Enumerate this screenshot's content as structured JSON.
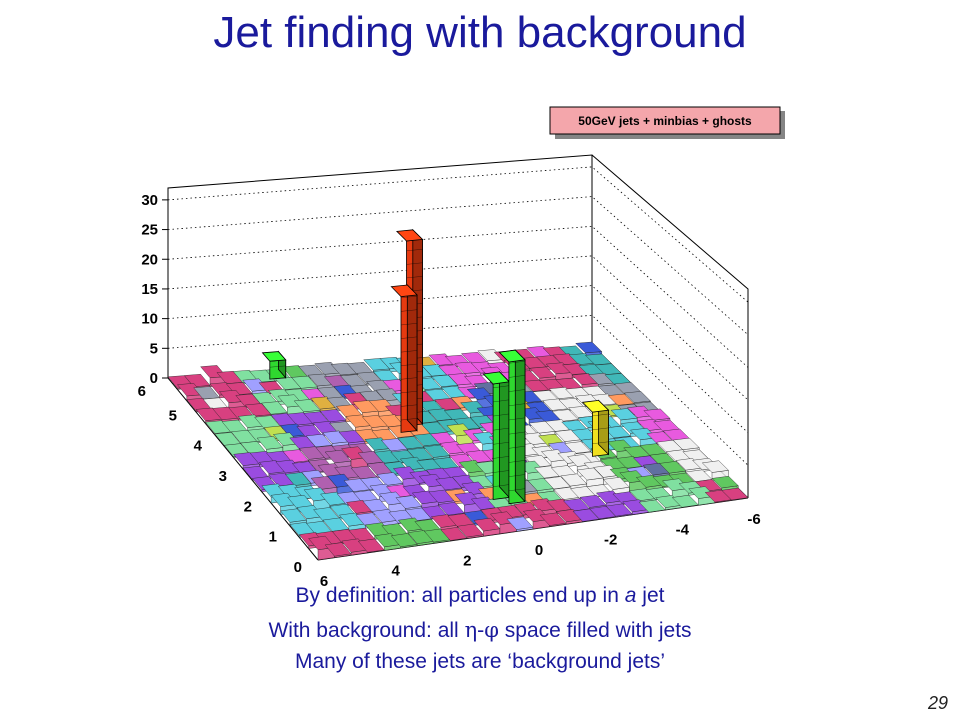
{
  "slide": {
    "title": "Jet finding with background",
    "caption": {
      "line1_pre": "By definition: all particles end up in ",
      "line1_em": "a",
      "line1_post": " jet",
      "line2_pre": "With background: all ",
      "line2_symbol": "η-φ",
      "line2_post": " space filled with jets",
      "line3": "Many of these jets are ‘background jets’"
    },
    "page_number": "29"
  },
  "chart_data": {
    "type": "lego3d",
    "title": "",
    "legend": {
      "label": "50GeV jets + minbias + ghosts",
      "placement": "top-right"
    },
    "z_axis": {
      "ticks": [
        "0",
        "5",
        "10",
        "15",
        "20",
        "25",
        "30"
      ],
      "range": [
        0,
        32
      ]
    },
    "phi_axis": {
      "ticks": [
        "0",
        "1",
        "2",
        "3",
        "4",
        "5",
        "6"
      ],
      "range": [
        0,
        6.28
      ]
    },
    "eta_axis": {
      "ticks": [
        "6",
        "4",
        "2",
        "0",
        "-2",
        "-4",
        "-6"
      ],
      "range": [
        6,
        -6
      ]
    },
    "grid": true,
    "colors": {
      "jet1": "#e63a10",
      "jet2": "#2fd82f",
      "jet3": "#f0e020",
      "palette": [
        "#3a5ad8",
        "#9a4ce0",
        "#e85adf",
        "#5ad0e0",
        "#9aa0b0",
        "#e0b040",
        "#60c860",
        "#d84080",
        "#80e0a0",
        "#a0a0ff",
        "#40b8b8",
        "#c0e050",
        "#ff9a60",
        "#6070a0",
        "#b060b0",
        "#f0f0f0"
      ]
    },
    "peaks": [
      {
        "name": "jet-red-1",
        "eta": 0.6,
        "phi": 4.0,
        "height": 30,
        "color": "jet1"
      },
      {
        "name": "jet-red-2",
        "eta": 0.9,
        "phi": 3.8,
        "height": 22,
        "color": "jet1"
      },
      {
        "name": "jet-green-1",
        "eta": -0.2,
        "phi": 1.1,
        "height": 22,
        "color": "jet2"
      },
      {
        "name": "jet-green-2",
        "eta": 0.1,
        "phi": 1.3,
        "height": 18,
        "color": "jet2"
      },
      {
        "name": "jet-yellow",
        "eta": -3.4,
        "phi": 2.3,
        "height": 7,
        "color": "jet3"
      },
      {
        "name": "jet-green-small",
        "eta": 3.1,
        "phi": 5.9,
        "height": 3,
        "color": "jet2"
      }
    ]
  }
}
